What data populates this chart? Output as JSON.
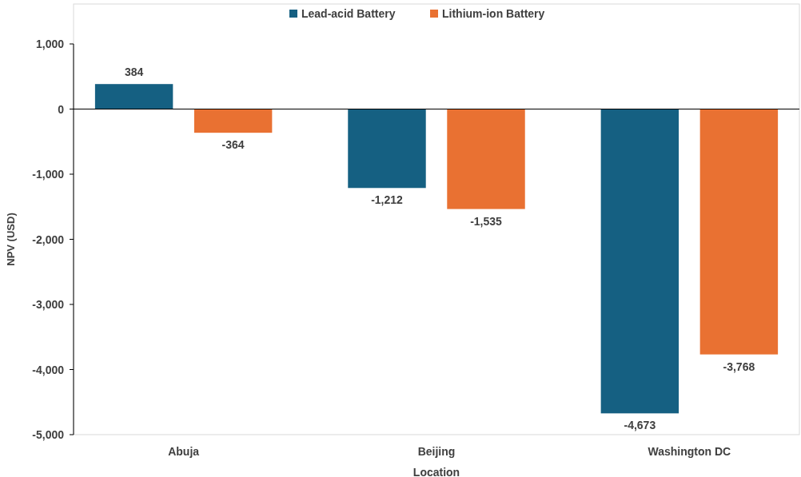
{
  "chart_data": {
    "type": "bar",
    "xlabel": "Location",
    "ylabel": "NPV (USD)",
    "categories": [
      "Abuja",
      "Beijing",
      "Washington DC"
    ],
    "series": [
      {
        "name": "Lead-acid Battery",
        "color": "#156082",
        "values": [
          384,
          -1212,
          -4673
        ]
      },
      {
        "name": "Lithium-ion Battery",
        "color": "#e97132",
        "values": [
          -364,
          -1535,
          -3768
        ]
      }
    ],
    "ylim": [
      -5000,
      1000
    ],
    "yticks": [
      {
        "value": 1000,
        "label": "1,000"
      },
      0,
      {
        "value": -1000,
        "label": "-1,000"
      },
      {
        "value": -2000,
        "label": "-2,000"
      },
      {
        "value": -3000,
        "label": "-3,000"
      },
      {
        "value": -4000,
        "label": "-4,000"
      },
      {
        "value": -5000,
        "label": "-5,000"
      }
    ],
    "value_labels": [
      [
        "384",
        "-1,212",
        "-4,673"
      ],
      [
        "-364",
        "-1,535",
        "-3,768"
      ]
    ],
    "legend": "top"
  }
}
